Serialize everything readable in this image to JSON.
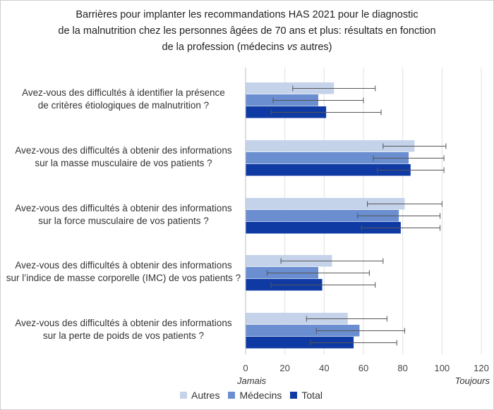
{
  "title_lines": [
    "Barrières pour implanter les recommandations HAS 2021 pour le diagnostic",
    "de la malnutrition chez les personnes âgées de 70 ans et plus: résultats en fonction",
    "de la profession (médecins vs autres)"
  ],
  "x_end_labels": {
    "left": "Jamais",
    "right": "Toujours"
  },
  "colors": {
    "Autres": "#c5d3ea",
    "Médecins": "#6b8ed0",
    "Total": "#0f3aa3",
    "error_bar": "#555555",
    "grid": "#e0e0e0"
  },
  "chart_data": {
    "type": "bar",
    "orientation": "horizontal",
    "xlim": [
      0,
      120
    ],
    "xticks": [
      0,
      20,
      40,
      60,
      80,
      100,
      120
    ],
    "grid": true,
    "legend_position": "bottom",
    "categories": [
      [
        "Avez-vous des difficultés à identifier la présence",
        "de critères étiologiques de malnutrition ?"
      ],
      [
        "Avez-vous des difficultés à obtenir des informations",
        "sur la masse musculaire de vos patients ?"
      ],
      [
        "Avez-vous des difficultés à obtenir des informations",
        "sur la force musculaire de vos patients ?"
      ],
      [
        "Avez-vous des difficultés à obtenir des informations",
        "sur l’indice de masse corporelle (IMC) de vos patients ?"
      ],
      [
        "Avez-vous des difficultés à obtenir des informations",
        "sur la perte de poids de vos patients ?"
      ]
    ],
    "series": [
      {
        "name": "Autres",
        "values": [
          45,
          86,
          81,
          44,
          52
        ],
        "error_low": [
          24,
          70,
          62,
          18,
          31
        ],
        "error_high": [
          66,
          102,
          100,
          70,
          72
        ]
      },
      {
        "name": "Médecins",
        "values": [
          37,
          83,
          78,
          37,
          58
        ],
        "error_low": [
          14,
          65,
          57,
          11,
          36
        ],
        "error_high": [
          60,
          101,
          99,
          63,
          81
        ]
      },
      {
        "name": "Total",
        "values": [
          41,
          84,
          79,
          39,
          55
        ],
        "error_low": [
          13,
          67,
          59,
          13,
          33
        ],
        "error_high": [
          69,
          101,
          99,
          66,
          77
        ]
      }
    ]
  }
}
